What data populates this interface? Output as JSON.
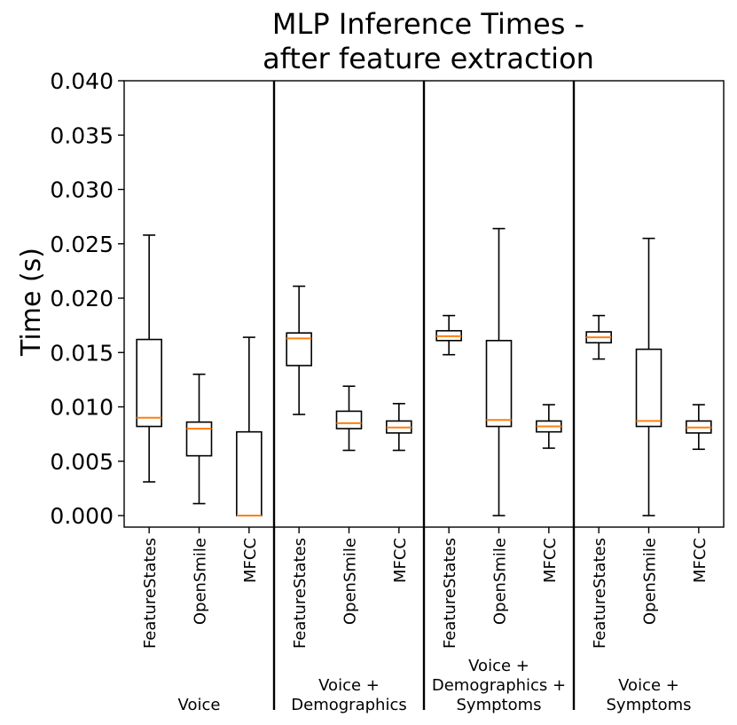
{
  "chart_data": {
    "type": "box",
    "title": "MLP Inference Times -\nafter feature extraction",
    "title_lines": [
      "MLP Inference Times -",
      "after feature extraction"
    ],
    "ylabel": "Time (s)",
    "ylim": [
      -0.001,
      0.04
    ],
    "yticks": [
      0.0,
      0.005,
      0.01,
      0.015,
      0.02,
      0.025,
      0.03,
      0.035,
      0.04
    ],
    "ytick_labels": [
      "0.000",
      "0.005",
      "0.010",
      "0.015",
      "0.020",
      "0.025",
      "0.030",
      "0.035",
      "0.040"
    ],
    "colors": {
      "box": "#000000",
      "median": "#ff7f0e",
      "separator": "#000000"
    },
    "groups": [
      {
        "label_lines": [
          "Voice"
        ],
        "boxes": [
          {
            "label": "FeatureStates",
            "whisker_low": 0.0031,
            "q1": 0.0082,
            "median": 0.009,
            "q3": 0.0162,
            "whisker_high": 0.0258
          },
          {
            "label": "OpenSmile",
            "whisker_low": 0.0011,
            "q1": 0.0055,
            "median": 0.008,
            "q3": 0.0086,
            "whisker_high": 0.013
          },
          {
            "label": "MFCC",
            "whisker_low": 0.0,
            "q1": 0.0,
            "median": 0.0,
            "q3": 0.0077,
            "whisker_high": 0.0164
          }
        ]
      },
      {
        "label_lines": [
          "Voice +",
          "Demographics"
        ],
        "boxes": [
          {
            "label": "FeatureStates",
            "whisker_low": 0.0093,
            "q1": 0.0138,
            "median": 0.0163,
            "q3": 0.0168,
            "whisker_high": 0.0211
          },
          {
            "label": "OpenSmile",
            "whisker_low": 0.006,
            "q1": 0.008,
            "median": 0.0085,
            "q3": 0.0096,
            "whisker_high": 0.0119
          },
          {
            "label": "MFCC",
            "whisker_low": 0.006,
            "q1": 0.0076,
            "median": 0.0081,
            "q3": 0.0087,
            "whisker_high": 0.0103
          }
        ]
      },
      {
        "label_lines": [
          "Voice +",
          "Demographics +",
          "Symptoms"
        ],
        "boxes": [
          {
            "label": "FeatureStates",
            "whisker_low": 0.0148,
            "q1": 0.0161,
            "median": 0.0165,
            "q3": 0.017,
            "whisker_high": 0.0184
          },
          {
            "label": "OpenSmile",
            "whisker_low": 0.0,
            "q1": 0.0082,
            "median": 0.0088,
            "q3": 0.0161,
            "whisker_high": 0.0264
          },
          {
            "label": "MFCC",
            "whisker_low": 0.0062,
            "q1": 0.0077,
            "median": 0.0082,
            "q3": 0.0087,
            "whisker_high": 0.0102
          }
        ]
      },
      {
        "label_lines": [
          "Voice +",
          "Symptoms"
        ],
        "boxes": [
          {
            "label": "FeatureStates",
            "whisker_low": 0.0144,
            "q1": 0.0159,
            "median": 0.0164,
            "q3": 0.0169,
            "whisker_high": 0.0184
          },
          {
            "label": "OpenSmile",
            "whisker_low": 0.0,
            "q1": 0.0082,
            "median": 0.0087,
            "q3": 0.0153,
            "whisker_high": 0.0255
          },
          {
            "label": "MFCC",
            "whisker_low": 0.0061,
            "q1": 0.0076,
            "median": 0.0081,
            "q3": 0.0087,
            "whisker_high": 0.0102
          }
        ]
      }
    ]
  }
}
